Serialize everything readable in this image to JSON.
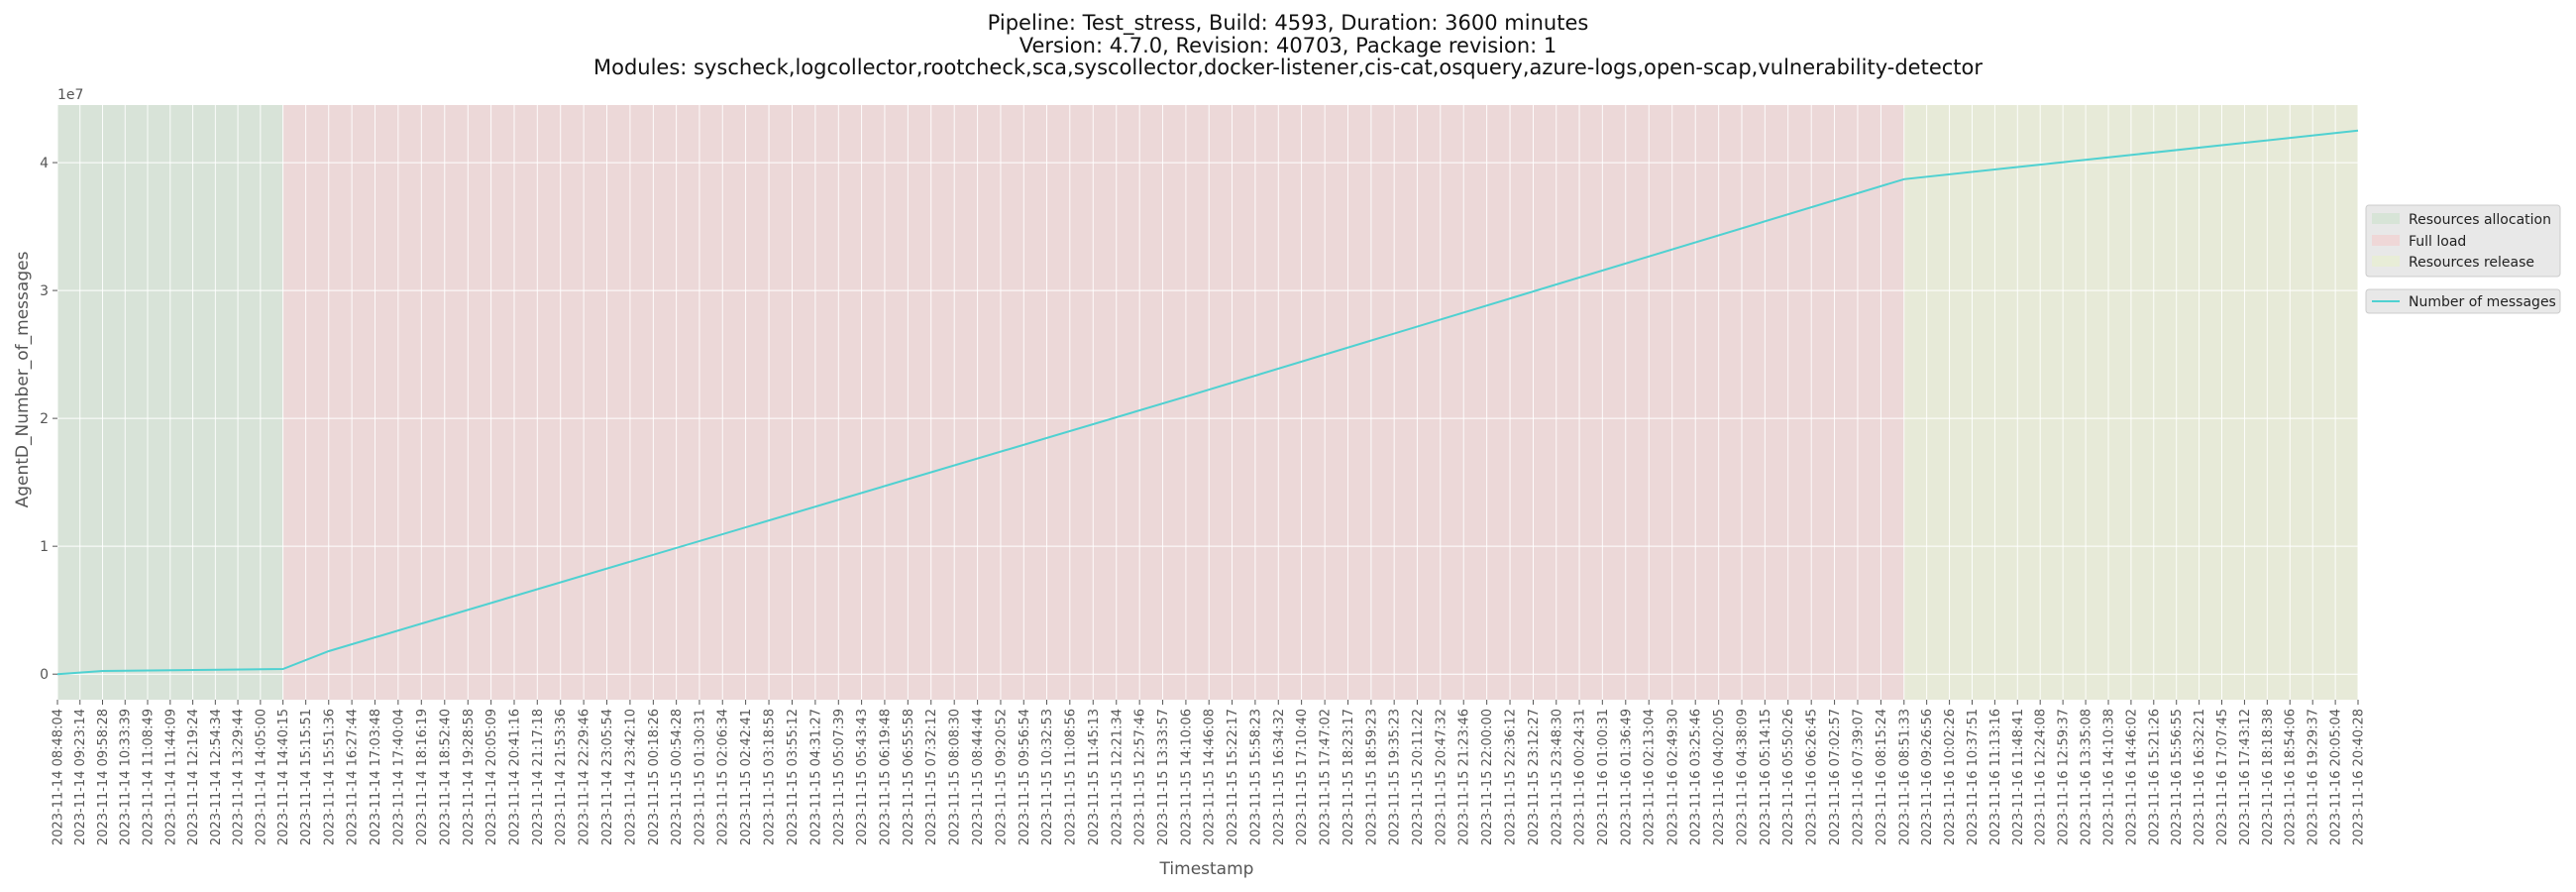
{
  "chart_data": {
    "type": "line",
    "title": [
      "Pipeline: Test_stress, Build: 4593, Duration: 3600 minutes",
      "Version: 4.7.0, Revision: 40703, Package revision: 1",
      "Modules: syscheck,logcollector,rootcheck,sca,syscollector,docker-listener,cis-cat,osquery,azure-logs,open-scap,vulnerability-detector"
    ],
    "xlabel": "Timestamp",
    "ylabel": "AgentD_Number_of_messages",
    "y_offset_label": "1e7",
    "ylim": [
      -2000000,
      44500000
    ],
    "yticks": [
      0,
      10000000,
      20000000,
      30000000,
      40000000
    ],
    "yticklabels": [
      "0",
      "1",
      "2",
      "3",
      "4"
    ],
    "grid": true,
    "legend_position": "right",
    "x_tick_labels": [
      "2023-11-14 08:48:04",
      "2023-11-14 09:23:14",
      "2023-11-14 09:58:28",
      "2023-11-14 10:33:39",
      "2023-11-14 11:08:49",
      "2023-11-14 11:44:09",
      "2023-11-14 12:19:24",
      "2023-11-14 12:54:34",
      "2023-11-14 13:29:44",
      "2023-11-14 14:05:00",
      "2023-11-14 14:40:15",
      "2023-11-14 15:15:51",
      "2023-11-14 15:51:36",
      "2023-11-14 16:27:44",
      "2023-11-14 17:03:48",
      "2023-11-14 17:40:04",
      "2023-11-14 18:16:19",
      "2023-11-14 18:52:40",
      "2023-11-14 19:28:58",
      "2023-11-14 20:05:09",
      "2023-11-14 20:41:16",
      "2023-11-14 21:17:18",
      "2023-11-14 21:53:36",
      "2023-11-14 22:29:46",
      "2023-11-14 23:05:54",
      "2023-11-14 23:42:10",
      "2023-11-15 00:18:26",
      "2023-11-15 00:54:28",
      "2023-11-15 01:30:31",
      "2023-11-15 02:06:34",
      "2023-11-15 02:42:41",
      "2023-11-15 03:18:58",
      "2023-11-15 03:55:12",
      "2023-11-15 04:31:27",
      "2023-11-15 05:07:39",
      "2023-11-15 05:43:43",
      "2023-11-15 06:19:48",
      "2023-11-15 06:55:58",
      "2023-11-15 07:32:12",
      "2023-11-15 08:08:30",
      "2023-11-15 08:44:44",
      "2023-11-15 09:20:52",
      "2023-11-15 09:56:54",
      "2023-11-15 10:32:53",
      "2023-11-15 11:08:56",
      "2023-11-15 11:45:13",
      "2023-11-15 12:21:34",
      "2023-11-15 12:57:46",
      "2023-11-15 13:33:57",
      "2023-11-15 14:10:06",
      "2023-11-15 14:46:08",
      "2023-11-15 15:22:17",
      "2023-11-15 15:58:23",
      "2023-11-15 16:34:32",
      "2023-11-15 17:10:40",
      "2023-11-15 17:47:02",
      "2023-11-15 18:23:17",
      "2023-11-15 18:59:23",
      "2023-11-15 19:35:23",
      "2023-11-15 20:11:22",
      "2023-11-15 20:47:32",
      "2023-11-15 21:23:46",
      "2023-11-15 22:00:00",
      "2023-11-15 22:36:12",
      "2023-11-15 23:12:27",
      "2023-11-15 23:48:30",
      "2023-11-16 00:24:31",
      "2023-11-16 01:00:31",
      "2023-11-16 01:36:49",
      "2023-11-16 02:13:04",
      "2023-11-16 02:49:30",
      "2023-11-16 03:25:46",
      "2023-11-16 04:02:05",
      "2023-11-16 04:38:09",
      "2023-11-16 05:14:15",
      "2023-11-16 05:50:26",
      "2023-11-16 06:26:45",
      "2023-11-16 07:02:57",
      "2023-11-16 07:39:07",
      "2023-11-16 08:15:24",
      "2023-11-16 08:51:33",
      "2023-11-16 09:26:56",
      "2023-11-16 10:02:26",
      "2023-11-16 10:37:51",
      "2023-11-16 11:13:16",
      "2023-11-16 11:48:41",
      "2023-11-16 12:24:08",
      "2023-11-16 12:59:37",
      "2023-11-16 13:35:08",
      "2023-11-16 14:10:38",
      "2023-11-16 14:46:02",
      "2023-11-16 15:21:26",
      "2023-11-16 15:56:55",
      "2023-11-16 16:32:21",
      "2023-11-16 17:07:45",
      "2023-11-16 17:43:12",
      "2023-11-16 18:18:38",
      "2023-11-16 18:54:06",
      "2023-11-16 19:29:37",
      "2023-11-16 20:05:04",
      "2023-11-16 20:40:28"
    ],
    "phases": [
      {
        "name": "Resources allocation",
        "from": "2023-11-14 08:48:04",
        "to": "2023-11-14 14:40:15",
        "color": "#c8e0c8"
      },
      {
        "name": "Full load",
        "from": "2023-11-14 14:40:15",
        "to": "2023-11-16 08:51:33",
        "color": "#f4c8c8"
      },
      {
        "name": "Resources release",
        "from": "2023-11-16 08:51:33",
        "to": "2023-11-16 20:40:28",
        "color": "#e8f0c8"
      }
    ],
    "series": [
      {
        "name": "Number of messages",
        "color": "#4fd1d1",
        "x": [
          "2023-11-14 08:48:04",
          "2023-11-14 09:58:28",
          "2023-11-14 14:40:15",
          "2023-11-14 15:51:36",
          "2023-11-15 14:10:06",
          "2023-11-16 08:51:33",
          "2023-11-16 20:40:28"
        ],
        "y": [
          0,
          250000,
          400000,
          1800000,
          21700000,
          38700000,
          42500000
        ]
      }
    ]
  }
}
